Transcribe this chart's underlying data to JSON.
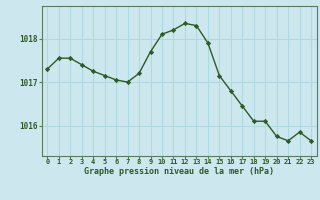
{
  "hours": [
    0,
    1,
    2,
    3,
    4,
    5,
    6,
    7,
    8,
    9,
    10,
    11,
    12,
    13,
    14,
    15,
    16,
    17,
    18,
    19,
    20,
    21,
    22,
    23
  ],
  "pressure": [
    1017.3,
    1017.55,
    1017.55,
    1017.4,
    1017.25,
    1017.15,
    1017.05,
    1017.0,
    1017.2,
    1017.7,
    1018.1,
    1018.2,
    1018.35,
    1018.3,
    1017.9,
    1017.15,
    1016.8,
    1016.45,
    1016.1,
    1016.1,
    1015.75,
    1015.65,
    1015.85,
    1015.65
  ],
  "line_color": "#2d5a27",
  "marker": "D",
  "marker_size": 2.2,
  "bg_color": "#cce8ee",
  "grid_color": "#b0d8e0",
  "xlabel": "Graphe pression niveau de la mer (hPa)",
  "xlabel_color": "#2d5a27",
  "tick_color": "#2d5a27",
  "axis_color": "#5a7a60",
  "ylim": [
    1015.3,
    1018.75
  ],
  "yticks": [
    1016,
    1017,
    1018
  ],
  "xlim": [
    -0.5,
    23.5
  ]
}
